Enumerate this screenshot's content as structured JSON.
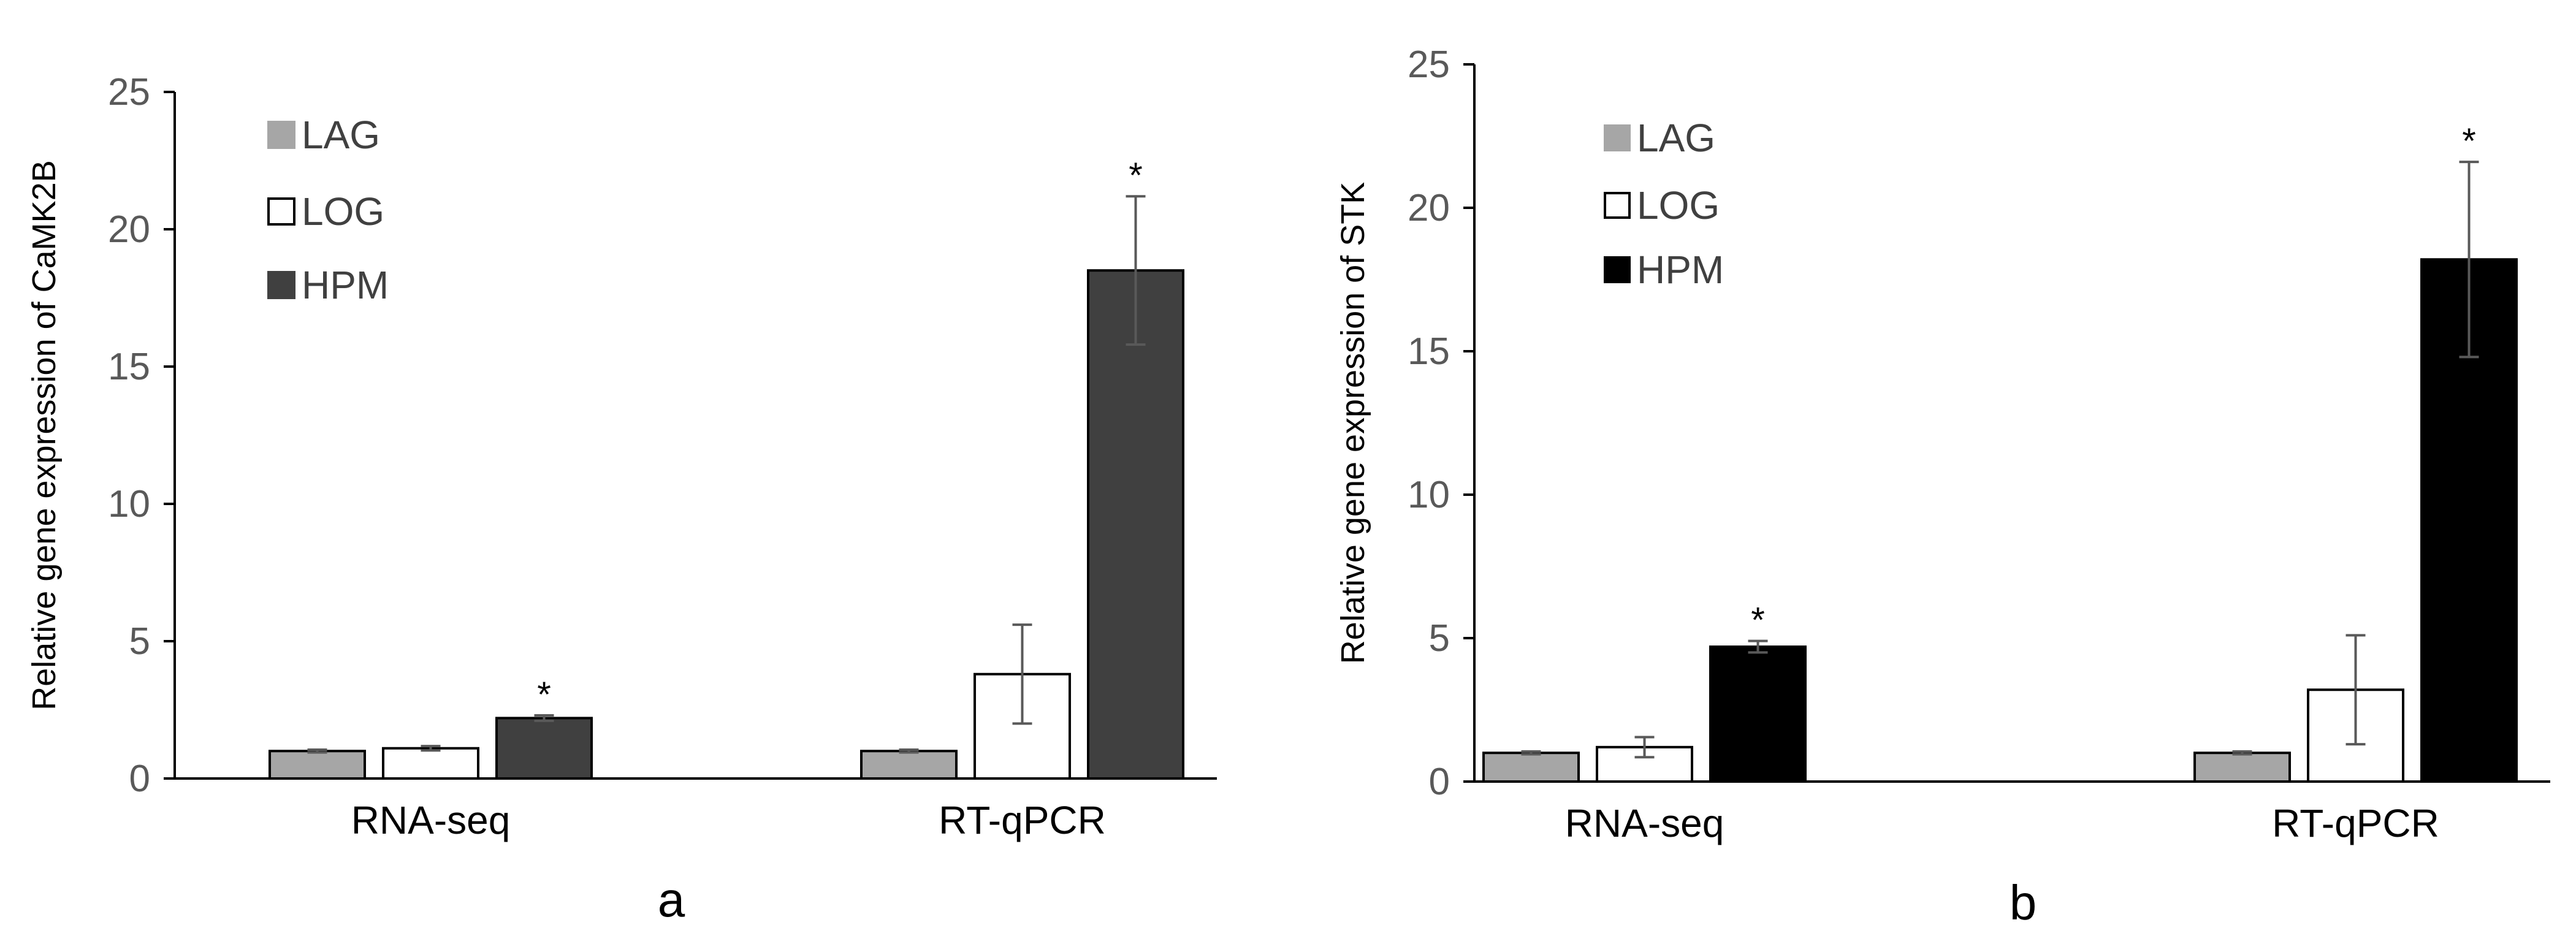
{
  "chart_data": [
    {
      "type": "bar",
      "panel_label": "a",
      "ylabel": "Relative gene expression of CaMK2B",
      "xlabel": "",
      "ylim": [
        0,
        25
      ],
      "yticks": [
        "0",
        "5",
        "10",
        "15",
        "20",
        "25"
      ],
      "categories": [
        "RNA-seq",
        "RT-qPCR"
      ],
      "legend_position": "top-left",
      "series": [
        {
          "name": "LAG",
          "color": "#a6a6a6",
          "values": [
            1.0,
            1.0
          ],
          "errors": [
            0.05,
            0.05
          ],
          "marks": [
            "",
            ""
          ]
        },
        {
          "name": "LOG",
          "color": "#ffffff",
          "values": [
            1.1,
            3.8
          ],
          "errors": [
            0.08,
            1.8
          ],
          "marks": [
            "",
            ""
          ]
        },
        {
          "name": "HPM",
          "color": "#404040",
          "values": [
            2.2,
            18.5
          ],
          "errors": [
            0.1,
            2.7
          ],
          "marks": [
            "*",
            "*"
          ]
        }
      ]
    },
    {
      "type": "bar",
      "panel_label": "b",
      "ylabel": "Relative gene expression of STK",
      "xlabel": "",
      "ylim": [
        0,
        25
      ],
      "yticks": [
        "0",
        "5",
        "10",
        "15",
        "20",
        "25"
      ],
      "categories": [
        "RNA-seq",
        "RT-qPCR"
      ],
      "legend_position": "top-left",
      "series": [
        {
          "name": "LAG",
          "color": "#a6a6a6",
          "values": [
            1.0,
            1.0
          ],
          "errors": [
            0.05,
            0.05
          ],
          "marks": [
            "",
            ""
          ]
        },
        {
          "name": "LOG",
          "color": "#ffffff",
          "values": [
            1.2,
            3.2
          ],
          "errors": [
            0.35,
            1.9
          ],
          "marks": [
            "",
            ""
          ]
        },
        {
          "name": "HPM",
          "color": "#000000",
          "values": [
            4.7,
            18.2
          ],
          "errors": [
            0.2,
            3.4
          ],
          "marks": [
            "*",
            "*"
          ]
        }
      ]
    }
  ]
}
